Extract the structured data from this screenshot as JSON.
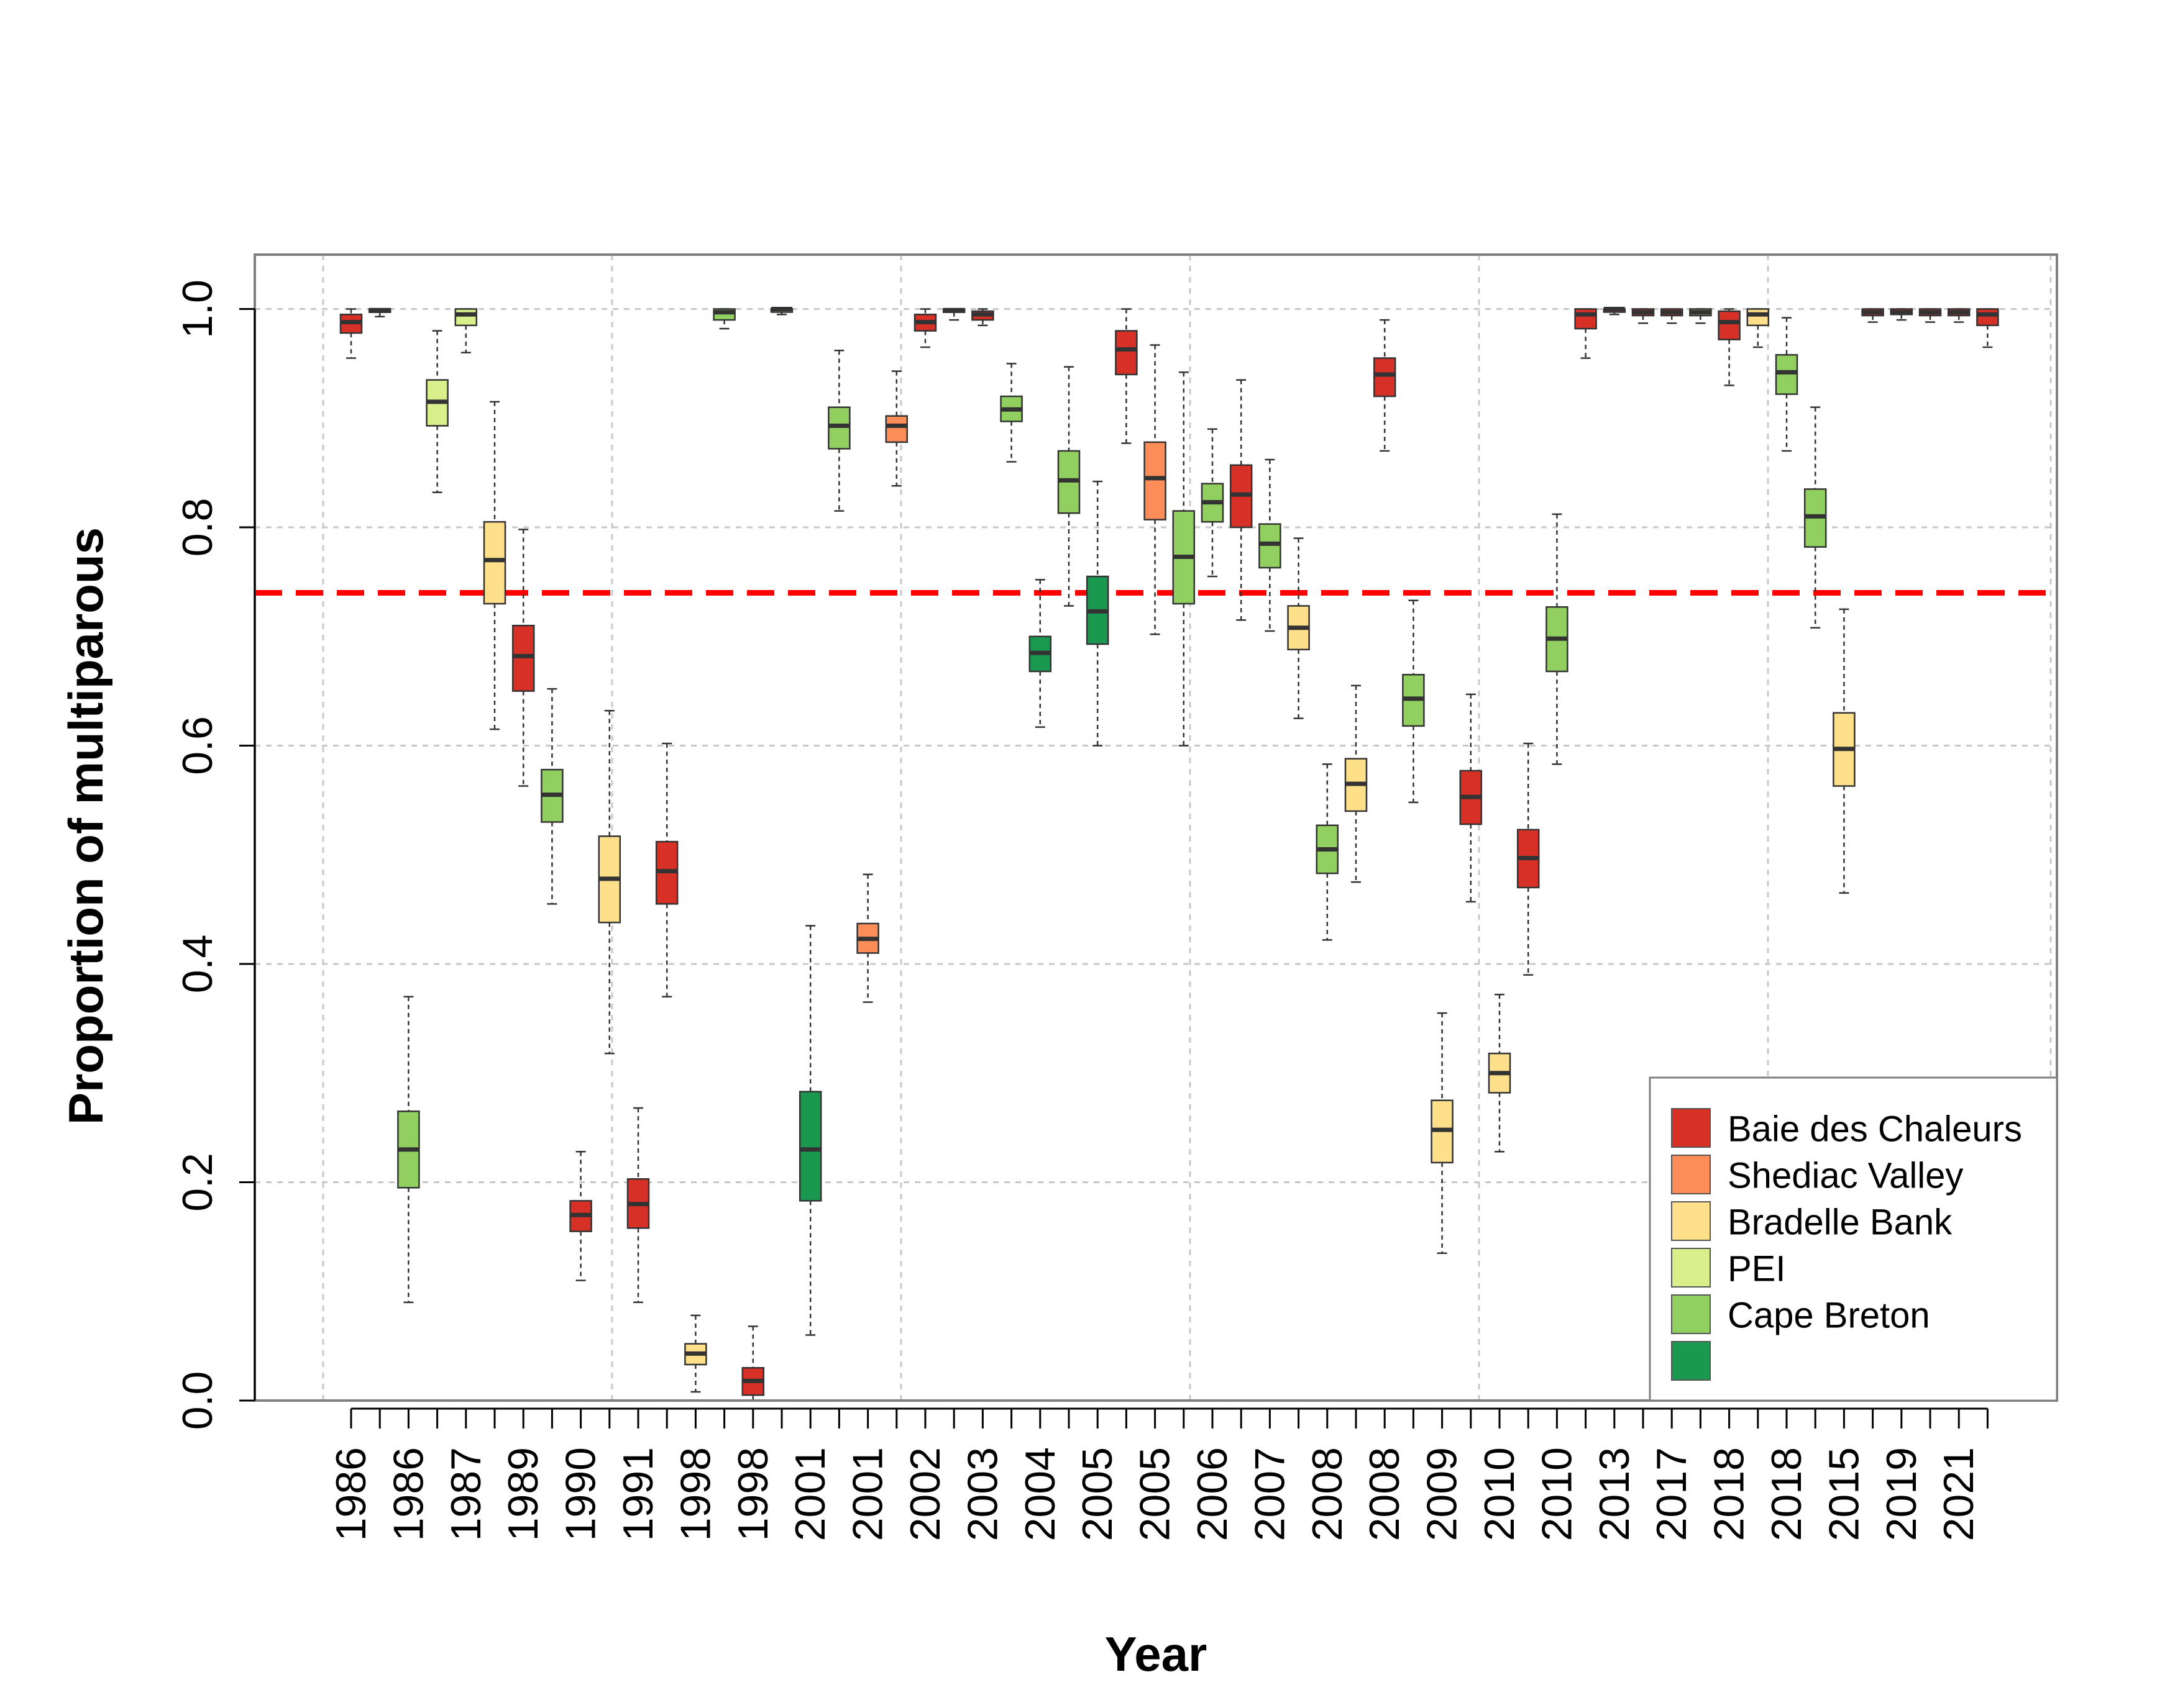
{
  "colors": {
    "Baie des Chaleurs": "#d73027",
    "Shediac Valley": "#fc8d59",
    "Bradelle Bank": "#fee08b",
    "PEI": "#d9ef8b",
    "Cape Breton": "#91cf60",
    "unlabeled": "#1a9850",
    "reference_line": "#ff0000",
    "grid": "#c8c8c8",
    "frame": "#808080"
  },
  "chart_data": {
    "type": "boxplot",
    "xlabel": "Year",
    "ylabel": "Proportion of multiparous",
    "ylim": [
      0,
      1.05
    ],
    "yticks": [
      "0.0",
      "0.2",
      "0.4",
      "0.6",
      "0.8",
      "1.0"
    ],
    "grid": true,
    "reference_line": {
      "y": 0.74,
      "style": "dashed"
    },
    "legend": {
      "position": "bottom-right",
      "entries": [
        "Baie des Chaleurs",
        "Shediac Valley",
        "Bradelle Bank",
        "PEI",
        "Cape Breton",
        ""
      ]
    },
    "categories": [
      "1986",
      "1986",
      "1987",
      "1989",
      "1990",
      "1991",
      "1998",
      "1998",
      "2001",
      "2001",
      "2002",
      "2003",
      "2004",
      "2005",
      "2005",
      "2006",
      "2007",
      "2008",
      "2008",
      "2009",
      "2010",
      "2010",
      "2013",
      "2017",
      "2018",
      "2018",
      "2015",
      "2019",
      "2021"
    ],
    "boxes": [
      {
        "group": "Baie des Chaleurs",
        "stats": [
          0.955,
          0.978,
          0.988,
          0.995,
          1.0
        ]
      },
      {
        "group": "Baie des Chaleurs",
        "stats": [
          0.993,
          0.997,
          0.999,
          1.0,
          1.0
        ]
      },
      {
        "group": "Cape Breton",
        "stats": [
          0.09,
          0.195,
          0.23,
          0.265,
          0.37
        ]
      },
      {
        "group": "PEI",
        "stats": [
          0.832,
          0.893,
          0.915,
          0.935,
          0.98
        ]
      },
      {
        "group": "PEI",
        "stats": [
          0.96,
          0.985,
          0.995,
          1.0,
          1.0
        ]
      },
      {
        "group": "Bradelle Bank",
        "stats": [
          0.615,
          0.73,
          0.77,
          0.805,
          0.915
        ]
      },
      {
        "group": "Baie des Chaleurs",
        "stats": [
          0.563,
          0.65,
          0.682,
          0.71,
          0.798
        ]
      },
      {
        "group": "Cape Breton",
        "stats": [
          0.455,
          0.53,
          0.555,
          0.578,
          0.652
        ]
      },
      {
        "group": "Baie des Chaleurs",
        "stats": [
          0.11,
          0.155,
          0.17,
          0.183,
          0.228
        ]
      },
      {
        "group": "Bradelle Bank",
        "stats": [
          0.318,
          0.438,
          0.478,
          0.517,
          0.632
        ]
      },
      {
        "group": "Baie des Chaleurs",
        "stats": [
          0.09,
          0.158,
          0.18,
          0.203,
          0.268
        ]
      },
      {
        "group": "Baie des Chaleurs",
        "stats": [
          0.37,
          0.455,
          0.485,
          0.512,
          0.602
        ]
      },
      {
        "group": "Bradelle Bank",
        "stats": [
          0.008,
          0.033,
          0.043,
          0.052,
          0.078
        ]
      },
      {
        "group": "Cape Breton",
        "stats": [
          0.982,
          0.99,
          0.997,
          1.0,
          1.0
        ]
      },
      {
        "group": "Baie des Chaleurs",
        "stats": [
          0.0,
          0.005,
          0.018,
          0.03,
          0.068
        ]
      },
      {
        "group": "Cape Breton",
        "stats": [
          0.995,
          0.998,
          1.0,
          1.0,
          1.0
        ]
      },
      {
        "group": "unlabeled",
        "stats": [
          0.06,
          0.183,
          0.23,
          0.283,
          0.435
        ]
      },
      {
        "group": "Cape Breton",
        "stats": [
          0.815,
          0.872,
          0.893,
          0.91,
          0.962
        ]
      },
      {
        "group": "Shediac Valley",
        "stats": [
          0.365,
          0.41,
          0.423,
          0.437,
          0.482
        ]
      },
      {
        "group": "Shediac Valley",
        "stats": [
          0.838,
          0.878,
          0.893,
          0.902,
          0.943
        ]
      },
      {
        "group": "Baie des Chaleurs",
        "stats": [
          0.965,
          0.98,
          0.988,
          0.995,
          1.0
        ]
      },
      {
        "group": "Baie des Chaleurs",
        "stats": [
          0.99,
          0.997,
          0.999,
          1.0,
          1.0
        ]
      },
      {
        "group": "Baie des Chaleurs",
        "stats": [
          0.985,
          0.99,
          0.995,
          0.998,
          1.0
        ]
      },
      {
        "group": "Cape Breton",
        "stats": [
          0.86,
          0.897,
          0.908,
          0.92,
          0.95
        ]
      },
      {
        "group": "unlabeled",
        "stats": [
          0.617,
          0.668,
          0.685,
          0.7,
          0.752
        ]
      },
      {
        "group": "Cape Breton",
        "stats": [
          0.728,
          0.813,
          0.843,
          0.87,
          0.947
        ]
      },
      {
        "group": "unlabeled",
        "stats": [
          0.6,
          0.693,
          0.723,
          0.755,
          0.842
        ]
      },
      {
        "group": "Baie des Chaleurs",
        "stats": [
          0.877,
          0.94,
          0.963,
          0.98,
          1.0
        ]
      },
      {
        "group": "Shediac Valley",
        "stats": [
          0.702,
          0.807,
          0.845,
          0.878,
          0.967
        ]
      },
      {
        "group": "Cape Breton",
        "stats": [
          0.6,
          0.73,
          0.773,
          0.815,
          0.942
        ]
      },
      {
        "group": "Cape Breton",
        "stats": [
          0.755,
          0.805,
          0.823,
          0.84,
          0.89
        ]
      },
      {
        "group": "Baie des Chaleurs",
        "stats": [
          0.715,
          0.8,
          0.83,
          0.857,
          0.935
        ]
      },
      {
        "group": "Cape Breton",
        "stats": [
          0.705,
          0.763,
          0.785,
          0.803,
          0.862
        ]
      },
      {
        "group": "Bradelle Bank",
        "stats": [
          0.625,
          0.688,
          0.708,
          0.728,
          0.79
        ]
      },
      {
        "group": "Cape Breton",
        "stats": [
          0.422,
          0.483,
          0.505,
          0.527,
          0.583
        ]
      },
      {
        "group": "Bradelle Bank",
        "stats": [
          0.475,
          0.54,
          0.565,
          0.588,
          0.655
        ]
      },
      {
        "group": "Baie des Chaleurs",
        "stats": [
          0.87,
          0.92,
          0.94,
          0.955,
          0.99
        ]
      },
      {
        "group": "Cape Breton",
        "stats": [
          0.548,
          0.618,
          0.643,
          0.665,
          0.733
        ]
      },
      {
        "group": "Bradelle Bank",
        "stats": [
          0.135,
          0.218,
          0.248,
          0.275,
          0.355
        ]
      },
      {
        "group": "Baie des Chaleurs",
        "stats": [
          0.457,
          0.528,
          0.553,
          0.577,
          0.647
        ]
      },
      {
        "group": "Bradelle Bank",
        "stats": [
          0.228,
          0.282,
          0.3,
          0.318,
          0.372
        ]
      },
      {
        "group": "Baie des Chaleurs",
        "stats": [
          0.39,
          0.47,
          0.497,
          0.523,
          0.602
        ]
      },
      {
        "group": "Cape Breton",
        "stats": [
          0.583,
          0.668,
          0.698,
          0.727,
          0.812
        ]
      },
      {
        "group": "Baie des Chaleurs",
        "stats": [
          0.955,
          0.982,
          0.995,
          1.0,
          1.0
        ]
      },
      {
        "group": "Baie des Chaleurs",
        "stats": [
          0.995,
          0.998,
          1.0,
          1.0,
          1.0
        ]
      },
      {
        "group": "Baie des Chaleurs",
        "stats": [
          0.987,
          0.994,
          0.997,
          1.0,
          1.0
        ]
      },
      {
        "group": "Baie des Chaleurs",
        "stats": [
          0.987,
          0.994,
          0.997,
          1.0,
          1.0
        ]
      },
      {
        "group": "Cape Breton",
        "stats": [
          0.987,
          0.994,
          0.997,
          1.0,
          1.0
        ]
      },
      {
        "group": "Baie des Chaleurs",
        "stats": [
          0.93,
          0.972,
          0.988,
          0.998,
          1.0
        ]
      },
      {
        "group": "Bradelle Bank",
        "stats": [
          0.965,
          0.985,
          0.995,
          1.0,
          1.0
        ]
      },
      {
        "group": "Cape Breton",
        "stats": [
          0.87,
          0.922,
          0.942,
          0.958,
          0.992
        ]
      },
      {
        "group": "Cape Breton",
        "stats": [
          0.708,
          0.782,
          0.81,
          0.835,
          0.91
        ]
      },
      {
        "group": "Bradelle Bank",
        "stats": [
          0.465,
          0.563,
          0.597,
          0.63,
          0.725
        ]
      },
      {
        "group": "Baie des Chaleurs",
        "stats": [
          0.988,
          0.994,
          0.997,
          1.0,
          1.0
        ]
      },
      {
        "group": "Baie des Chaleurs",
        "stats": [
          0.99,
          0.995,
          0.997,
          1.0,
          1.0
        ]
      },
      {
        "group": "Baie des Chaleurs",
        "stats": [
          0.988,
          0.994,
          0.997,
          1.0,
          1.0
        ]
      },
      {
        "group": "Baie des Chaleurs",
        "stats": [
          0.988,
          0.994,
          0.997,
          1.0,
          1.0
        ]
      },
      {
        "group": "Baie des Chaleurs",
        "stats": [
          0.965,
          0.985,
          0.995,
          1.0,
          1.0
        ]
      }
    ]
  }
}
